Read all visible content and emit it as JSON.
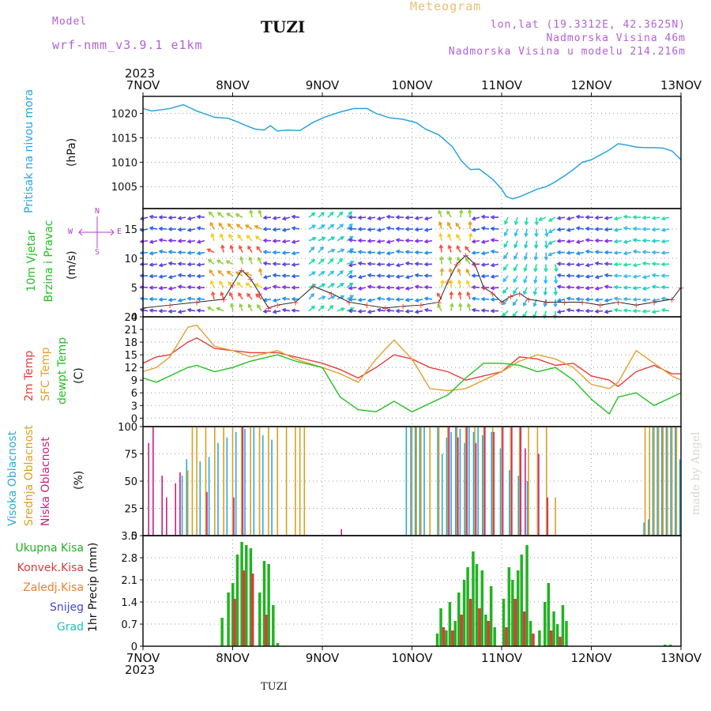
{
  "header": {
    "model_label": "Model",
    "model_name": "wrf-nmm_v3.9.1 e1km",
    "station": "TUZI",
    "title": "Meteogram",
    "lonlat": "lon,lat (19.3312E, 42.3625N)",
    "elevation": "Nadmorska Visina 46m",
    "model_elevation": "Nadmorska Visina u modelu 214.216m",
    "year_top": "2023",
    "year_bottom": "2023",
    "footer_station": "TUZI",
    "watermark": "made by Angel"
  },
  "colors": {
    "pressure": "#29a3e0",
    "temp2m": "#e83c3c",
    "sfc": "#e0a030",
    "dewpt": "#22c022",
    "high_cloud": "#2fa8d8",
    "mid_cloud": "#d8a020",
    "low_cloud": "#c82080",
    "precip_total": "#22b222",
    "precip_conv": "#e03a3a",
    "precip_snow_legend": "#4444e0",
    "precip_hail_legend": "#20c0c0",
    "wind_axis_label": "#b040d0"
  },
  "chart_data": [
    {
      "type": "line",
      "panel": "pressure",
      "x_tick_labels": [
        "7NOV",
        "8NOV",
        "9NOV",
        "10NOV",
        "11NOV",
        "12NOV",
        "13NOV"
      ],
      "ylabel": "Pritisak na nivou mora",
      "unit": "(hPa)",
      "ylim": [
        1000.5,
        1023.5
      ],
      "yticks": [
        1005,
        1010,
        1015,
        1020
      ],
      "grid": true,
      "series": [
        {
          "x": [
            0,
            0.1,
            0.3,
            0.45,
            0.6,
            0.8,
            0.95,
            1.05,
            1.15,
            1.25,
            1.35,
            1.42,
            1.5,
            1.6,
            1.75,
            1.9,
            2.05,
            2.2,
            2.35,
            2.5,
            2.6,
            2.75,
            2.9,
            3.05,
            3.15,
            3.3,
            3.45,
            3.55,
            3.65,
            3.75,
            3.9,
            4.0,
            4.05,
            4.12,
            4.2,
            4.3,
            4.4,
            4.5,
            4.6,
            4.7,
            4.8,
            4.9,
            5.0,
            5.1,
            5.2,
            5.3,
            5.4,
            5.5,
            5.6,
            5.7,
            5.8,
            5.9,
            6.0
          ],
          "values": [
            1021,
            1020.5,
            1021,
            1021.8,
            1020.5,
            1019.2,
            1019,
            1018.3,
            1017.5,
            1016.8,
            1016.6,
            1017.5,
            1016.4,
            1016.6,
            1016.5,
            1018.2,
            1019.4,
            1020.3,
            1021,
            1021,
            1020,
            1019.1,
            1018.8,
            1018.1,
            1016.8,
            1015.6,
            1013.2,
            1010.3,
            1008.5,
            1008.6,
            1006.5,
            1004.5,
            1003,
            1002.5,
            1002.9,
            1003.7,
            1004.5,
            1005,
            1006,
            1007.2,
            1008.5,
            1010,
            1010.5,
            1011.5,
            1012.5,
            1013.8,
            1013.5,
            1013.1,
            1013,
            1013,
            1012.9,
            1012.3,
            1010.5
          ]
        }
      ]
    },
    {
      "type": "line",
      "panel": "wind",
      "ylabel": "10m Vjetar Brzina i Pravac",
      "unit": "(m/s)",
      "compass": {
        "n": "N",
        "s": "S",
        "w": "W",
        "e": "E"
      },
      "ylim": [
        0,
        18.5
      ],
      "yticks": [
        0,
        5,
        10,
        15
      ],
      "grid": true,
      "series": [
        {
          "name": "speed",
          "x": [
            0,
            0.3,
            0.6,
            0.9,
            1.0,
            1.1,
            1.2,
            1.3,
            1.4,
            1.5,
            1.7,
            1.9,
            2.1,
            2.3,
            2.5,
            2.7,
            2.9,
            3.1,
            3.3,
            3.4,
            3.5,
            3.6,
            3.7,
            3.8,
            3.9,
            4.0,
            4.1,
            4.2,
            4.3,
            4.5,
            4.7,
            4.9,
            5.1,
            5.3,
            5.5,
            5.7,
            5.9,
            6.0
          ],
          "values": [
            1.5,
            2,
            2.5,
            3,
            5.5,
            8,
            6.5,
            4,
            1.5,
            2,
            2.5,
            5.2,
            4,
            2.5,
            2,
            1.5,
            1.8,
            2,
            2.5,
            6,
            9,
            10.5,
            9,
            5,
            4,
            2.5,
            3.5,
            4,
            3,
            2.5,
            2.5,
            2.5,
            2,
            2.5,
            2,
            2.5,
            3,
            5
          ]
        }
      ]
    },
    {
      "type": "line",
      "panel": "temperature",
      "ylabel_series": [
        "2m Temp",
        "SFC Temp",
        "dewpt Temp"
      ],
      "unit": "(C)",
      "ylim": [
        -2,
        24
      ],
      "yticks": [
        0,
        3,
        6,
        9,
        12,
        15,
        18,
        21,
        24
      ],
      "grid": true,
      "series": [
        {
          "name": "2m Temp",
          "x": [
            0,
            0.15,
            0.3,
            0.5,
            0.6,
            0.8,
            1.0,
            1.2,
            1.5,
            1.7,
            2.0,
            2.2,
            2.4,
            2.6,
            2.8,
            3.0,
            3.2,
            3.4,
            3.6,
            3.8,
            4.0,
            4.2,
            4.4,
            4.6,
            4.8,
            5.0,
            5.2,
            5.3,
            5.5,
            5.7,
            5.9,
            6.0
          ],
          "values": [
            13,
            14.5,
            15,
            18,
            19,
            16.5,
            16,
            15.5,
            15.5,
            14.5,
            13,
            11.5,
            9.5,
            12,
            15,
            14,
            12,
            11,
            9,
            10,
            11,
            14.5,
            14,
            12.5,
            13,
            10,
            9,
            7.5,
            11,
            12.5,
            10.5,
            10.5
          ]
        },
        {
          "name": "SFC Temp",
          "x": [
            0,
            0.15,
            0.3,
            0.5,
            0.6,
            0.8,
            1.0,
            1.2,
            1.5,
            1.7,
            2.0,
            2.2,
            2.4,
            2.6,
            2.8,
            3.0,
            3.2,
            3.4,
            3.6,
            3.8,
            4.0,
            4.2,
            4.4,
            4.6,
            4.8,
            5.0,
            5.2,
            5.3,
            5.5,
            5.7,
            5.9,
            6.0
          ],
          "values": [
            11,
            12,
            14.5,
            21.5,
            22,
            17,
            16,
            14.5,
            16,
            14,
            12,
            10.5,
            8.5,
            14,
            18.5,
            14,
            7,
            6.5,
            7,
            9,
            11,
            13.5,
            15,
            14,
            12,
            8,
            7,
            8.5,
            16,
            13,
            10,
            9
          ]
        },
        {
          "name": "dewpt Temp",
          "x": [
            0,
            0.15,
            0.3,
            0.5,
            0.6,
            0.8,
            1.0,
            1.2,
            1.5,
            1.7,
            2.0,
            2.2,
            2.4,
            2.6,
            2.8,
            3.0,
            3.2,
            3.4,
            3.6,
            3.8,
            4.0,
            4.2,
            4.4,
            4.6,
            4.8,
            5.0,
            5.2,
            5.3,
            5.5,
            5.7,
            5.9,
            6.0
          ],
          "values": [
            9.5,
            8.5,
            10,
            12,
            12.5,
            11,
            12,
            13.5,
            15,
            13.5,
            12,
            5,
            2,
            1.5,
            4,
            1.5,
            3.5,
            5.5,
            9.5,
            13,
            13,
            12.5,
            11,
            12,
            9,
            4.5,
            1,
            5,
            6,
            3,
            5,
            6
          ]
        }
      ]
    },
    {
      "type": "bar",
      "panel": "clouds",
      "ylabel_series": [
        "Visoka Oblacnost",
        "Srednja Oblacnost",
        "Niska Oblacnost"
      ],
      "unit": "(%)",
      "ylim": [
        0,
        100
      ],
      "yticks": [
        0,
        25,
        50,
        75,
        100
      ],
      "grid": true,
      "series": [
        {
          "name": "Visoka Oblacnost",
          "x": [
            0.45,
            0.5,
            0.65,
            0.75,
            0.85,
            0.95,
            1.05,
            1.15,
            1.25,
            1.35,
            1.45,
            2.95,
            3.0,
            3.05,
            3.1,
            3.15,
            3.3,
            3.35,
            3.4,
            3.45,
            3.5,
            3.55,
            3.6,
            3.65,
            3.7,
            3.75,
            3.8,
            3.9,
            4.0,
            4.1,
            4.2,
            4.3,
            5.6,
            5.65,
            5.7,
            5.75,
            5.8,
            5.85,
            5.9,
            5.95,
            6.0
          ],
          "values": [
            55,
            70,
            68,
            72,
            85,
            90,
            95,
            98,
            100,
            92,
            88,
            100,
            100,
            100,
            100,
            100,
            100,
            75,
            90,
            95,
            100,
            98,
            85,
            100,
            95,
            100,
            92,
            95,
            80,
            60,
            55,
            50,
            12,
            15,
            100,
            100,
            100,
            100,
            100,
            100,
            70
          ]
        },
        {
          "name": "Srednja Oblacnost",
          "x": [
            0.5,
            0.55,
            0.6,
            0.7,
            0.8,
            0.9,
            1.0,
            1.1,
            1.2,
            1.3,
            1.4,
            1.5,
            1.6,
            1.7,
            1.75,
            1.8,
            3.0,
            3.05,
            3.1,
            3.2,
            3.3,
            3.4,
            3.5,
            3.6,
            3.7,
            3.8,
            3.9,
            4.0,
            4.1,
            4.2,
            4.3,
            4.4,
            4.5,
            4.6,
            5.6,
            5.65,
            5.7,
            5.75,
            5.8,
            5.85,
            5.9,
            5.95
          ],
          "values": [
            60,
            100,
            100,
            100,
            100,
            100,
            100,
            100,
            100,
            100,
            100,
            100,
            100,
            100,
            100,
            100,
            100,
            100,
            100,
            100,
            100,
            100,
            100,
            100,
            100,
            100,
            100,
            100,
            100,
            100,
            100,
            100,
            100,
            35,
            100,
            100,
            100,
            100,
            100,
            100,
            100,
            100
          ]
        },
        {
          "name": "Niska Oblacnost",
          "x": [
            0.05,
            0.1,
            0.2,
            0.25,
            0.35,
            0.4,
            0.7,
            1.0,
            1.1,
            2.2,
            3.4,
            3.5,
            3.6,
            3.7,
            3.8,
            3.9,
            4.0,
            4.1,
            4.2,
            4.25,
            4.4,
            4.5
          ],
          "values": [
            85,
            100,
            55,
            35,
            48,
            58,
            40,
            35,
            100,
            6,
            100,
            90,
            100,
            85,
            100,
            95,
            100,
            100,
            100,
            80,
            75,
            35
          ]
        }
      ]
    },
    {
      "type": "bar",
      "panel": "precipitation",
      "legend": [
        "Ukupna Kisa",
        "Konvek.Kisa",
        "Zaledj.Kisa",
        "Snijeg",
        "Grad"
      ],
      "ylabel": "1hr Precip (mm)",
      "ylim": [
        0,
        3.5
      ],
      "yticks": [
        0,
        0.7,
        1.4,
        2.1,
        2.8,
        3.5
      ],
      "grid": true,
      "series": [
        {
          "name": "Ukupna Kisa",
          "x": [
            0.88,
            0.95,
            1.0,
            1.05,
            1.1,
            1.15,
            1.2,
            1.3,
            1.35,
            1.4,
            1.45,
            1.5,
            3.28,
            3.32,
            3.38,
            3.42,
            3.48,
            3.52,
            3.58,
            3.62,
            3.68,
            3.72,
            3.78,
            3.82,
            3.88,
            3.92,
            4.02,
            4.08,
            4.12,
            4.18,
            4.22,
            4.28,
            4.32,
            4.42,
            4.48,
            4.52,
            4.58,
            4.62,
            4.68,
            4.72,
            5.82,
            5.88
          ],
          "values": [
            0.9,
            1.7,
            2.0,
            2.9,
            3.3,
            3.2,
            3.1,
            1.7,
            2.7,
            2.6,
            1.3,
            0.1,
            0.4,
            1.2,
            0.5,
            1.4,
            0.8,
            1.7,
            2.1,
            2.5,
            3.0,
            2.6,
            2.4,
            1.0,
            1.9,
            0.6,
            1.5,
            2.5,
            2.1,
            2.4,
            2.9,
            3.2,
            0.8,
            0.5,
            1.4,
            2.0,
            1.1,
            0.7,
            1.3,
            0.8,
            0.05,
            0.05
          ]
        },
        {
          "name": "Konvek.Kisa",
          "x": [
            1.02,
            1.12,
            1.22,
            1.37,
            3.35,
            3.45,
            3.55,
            3.65,
            3.75,
            3.85,
            4.05,
            4.15,
            4.25,
            4.35,
            4.55,
            4.65
          ],
          "values": [
            1.5,
            2.4,
            2.3,
            1.0,
            0.6,
            0.5,
            1.0,
            1.5,
            1.2,
            0.8,
            0.6,
            1.5,
            1.1,
            0.4,
            0.5,
            0.3
          ]
        }
      ]
    }
  ]
}
